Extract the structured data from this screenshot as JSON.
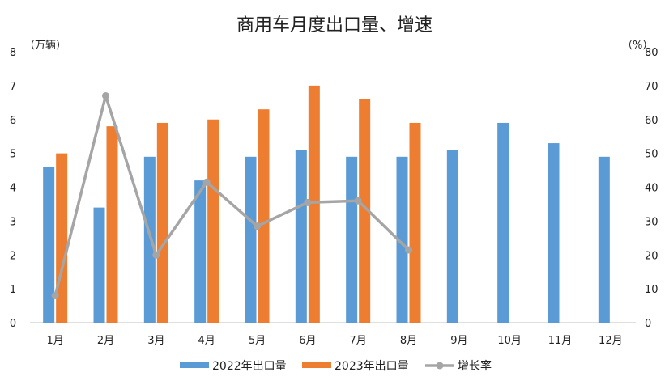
{
  "chart_data": {
    "type": "bar",
    "title": "商用车月度出口量、增速",
    "left_unit": "（万辆）",
    "right_unit": "（%）",
    "categories": [
      "1月",
      "2月",
      "3月",
      "4月",
      "5月",
      "6月",
      "7月",
      "8月",
      "9月",
      "10月",
      "11月",
      "12月"
    ],
    "ylim": [
      0,
      8
    ],
    "y2lim": [
      0,
      80
    ],
    "yticks": [
      "0",
      "1",
      "2",
      "3",
      "4",
      "5",
      "6",
      "7",
      "8"
    ],
    "y2ticks": [
      "0",
      "10",
      "20",
      "30",
      "40",
      "50",
      "60",
      "70",
      "80"
    ],
    "series": [
      {
        "name": "2022年出口量",
        "kind": "bar",
        "axis": "left",
        "color": "#5b9bd5",
        "values": [
          4.6,
          3.4,
          4.9,
          4.2,
          4.9,
          5.1,
          4.9,
          4.9,
          5.1,
          5.9,
          5.3,
          4.9
        ]
      },
      {
        "name": "2023年出口量",
        "kind": "bar",
        "axis": "left",
        "color": "#ed7d31",
        "values": [
          5.0,
          5.8,
          5.9,
          6.0,
          6.3,
          7.0,
          6.6,
          5.9,
          null,
          null,
          null,
          null
        ]
      },
      {
        "name": "增长率",
        "kind": "line",
        "axis": "right",
        "color": "#a5a5a5",
        "values": [
          8,
          67,
          20,
          41.5,
          28.5,
          35.5,
          36,
          21.5,
          null,
          null,
          null,
          null
        ]
      }
    ]
  }
}
